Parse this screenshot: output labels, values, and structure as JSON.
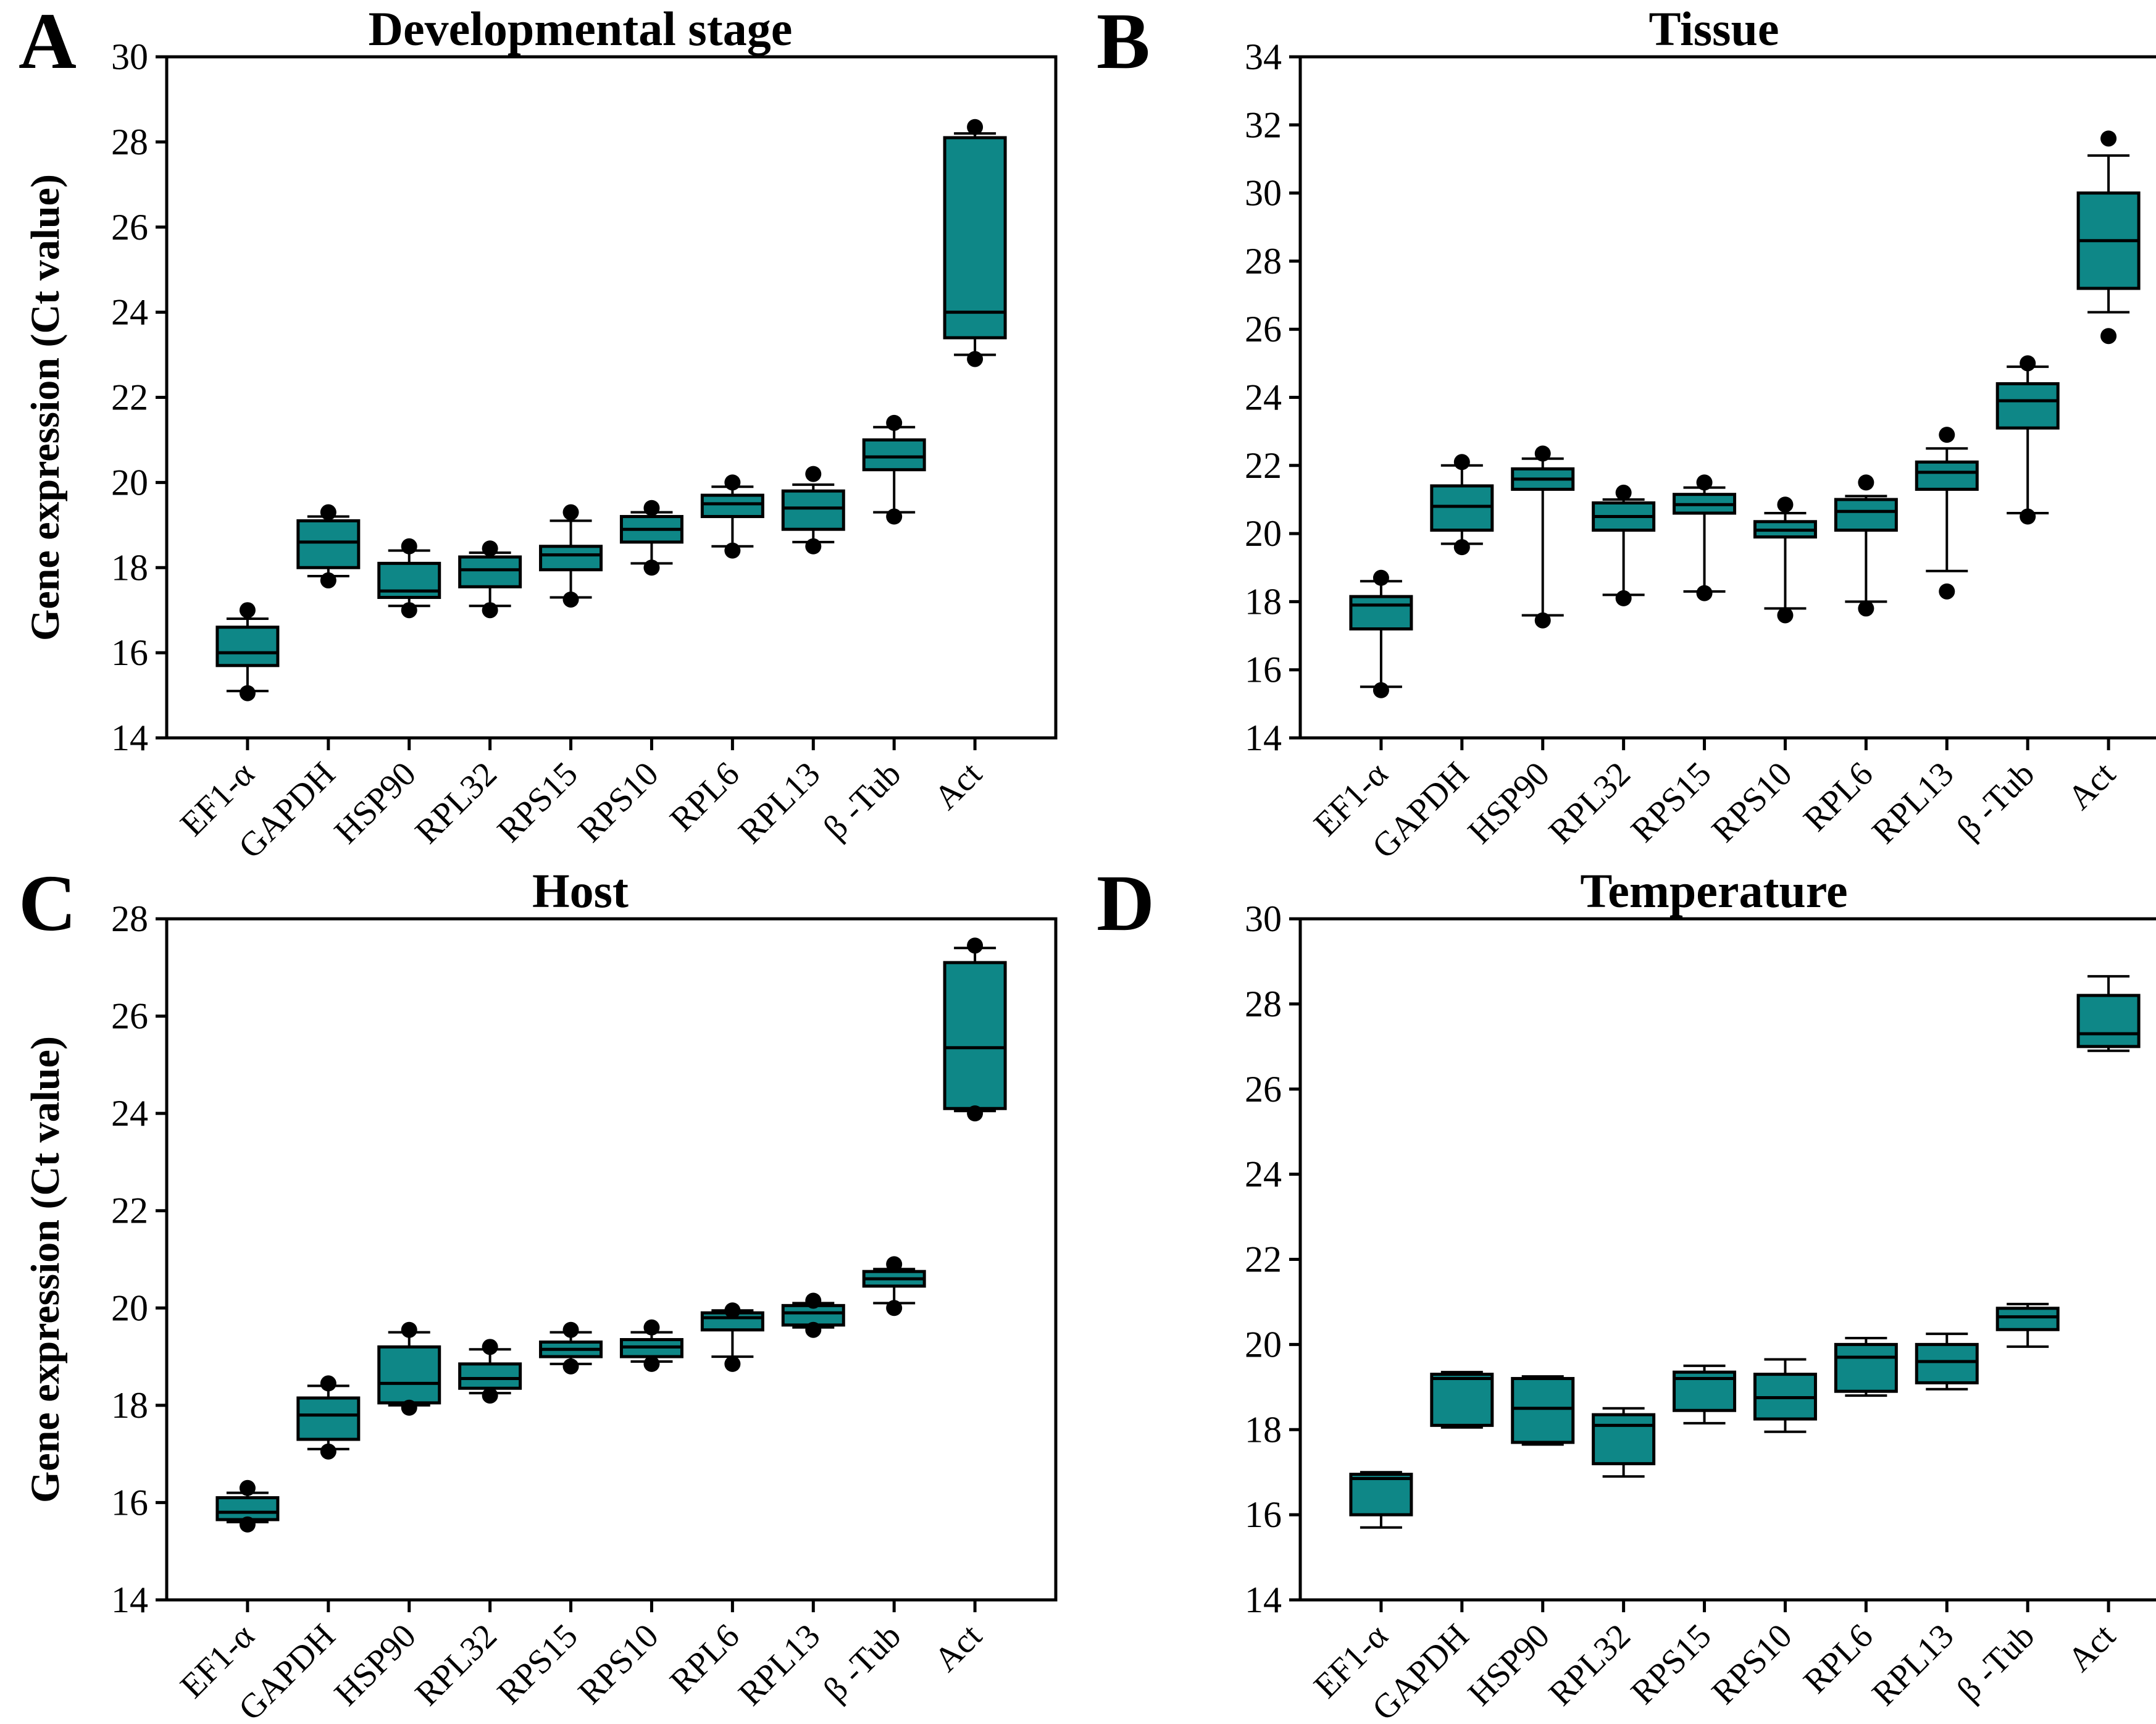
{
  "figure": {
    "ylabel": "Gene expression (Ct value)",
    "box_fill": "#0e8787",
    "line_color": "#000000",
    "background": "#ffffff",
    "genes": [
      "EF1-α",
      "GAPDH",
      "HSP90",
      "RPL32",
      "RPS15",
      "RPS10",
      "RPL6",
      "RPL13",
      "β -Tub",
      "Act"
    ]
  },
  "chart_data": [
    {
      "type": "box",
      "panel_letter": "A",
      "title": "Developmental stage",
      "ylabel": "Gene expression (Ct value)",
      "show_ylabel": true,
      "ylim": [
        14,
        30
      ],
      "ytick_step": 2,
      "grid": false,
      "categories": [
        "EF1-α",
        "GAPDH",
        "HSP90",
        "RPL32",
        "RPS15",
        "RPS10",
        "RPL6",
        "RPL13",
        "β -Tub",
        "Act"
      ],
      "boxes": [
        {
          "gene": "EF1-α",
          "whisker_low": 15.1,
          "q1": 15.7,
          "median": 16.0,
          "q3": 16.6,
          "whisker_high": 16.8,
          "outliers": [
            15.05,
            17.0
          ]
        },
        {
          "gene": "GAPDH",
          "whisker_low": 17.8,
          "q1": 18.0,
          "median": 18.6,
          "q3": 19.1,
          "whisker_high": 19.2,
          "outliers": [
            17.7,
            19.3
          ]
        },
        {
          "gene": "HSP90",
          "whisker_low": 17.1,
          "q1": 17.3,
          "median": 17.45,
          "q3": 18.1,
          "whisker_high": 18.4,
          "outliers": [
            17.0,
            18.5
          ]
        },
        {
          "gene": "RPL32",
          "whisker_low": 17.1,
          "q1": 17.55,
          "median": 17.95,
          "q3": 18.25,
          "whisker_high": 18.35,
          "outliers": [
            17.0,
            18.45
          ]
        },
        {
          "gene": "RPS15",
          "whisker_low": 17.3,
          "q1": 17.95,
          "median": 18.3,
          "q3": 18.5,
          "whisker_high": 19.1,
          "outliers": [
            17.25,
            19.3
          ]
        },
        {
          "gene": "RPS10",
          "whisker_low": 18.1,
          "q1": 18.6,
          "median": 18.9,
          "q3": 19.2,
          "whisker_high": 19.3,
          "outliers": [
            18.0,
            19.4
          ]
        },
        {
          "gene": "RPL6",
          "whisker_low": 18.5,
          "q1": 19.2,
          "median": 19.5,
          "q3": 19.7,
          "whisker_high": 19.9,
          "outliers": [
            18.4,
            20.0
          ]
        },
        {
          "gene": "RPL13",
          "whisker_low": 18.6,
          "q1": 18.9,
          "median": 19.4,
          "q3": 19.8,
          "whisker_high": 19.95,
          "outliers": [
            18.5,
            20.2
          ]
        },
        {
          "gene": "β -Tub",
          "whisker_low": 19.3,
          "q1": 20.3,
          "median": 20.6,
          "q3": 21.0,
          "whisker_high": 21.3,
          "outliers": [
            19.2,
            21.4
          ]
        },
        {
          "gene": "Act",
          "whisker_low": 23.0,
          "q1": 23.4,
          "median": 24.0,
          "q3": 28.1,
          "whisker_high": 28.2,
          "outliers": [
            22.9,
            28.35
          ]
        }
      ]
    },
    {
      "type": "box",
      "panel_letter": "B",
      "title": "Tissue",
      "ylabel": "",
      "show_ylabel": false,
      "ylim": [
        14,
        34
      ],
      "ytick_step": 2,
      "grid": false,
      "categories": [
        "EF1-α",
        "GAPDH",
        "HSP90",
        "RPL32",
        "RPS15",
        "RPS10",
        "RPL6",
        "RPL13",
        "β -Tub",
        "Act"
      ],
      "boxes": [
        {
          "gene": "EF1-α",
          "whisker_low": 15.5,
          "q1": 17.2,
          "median": 17.9,
          "q3": 18.15,
          "whisker_high": 18.6,
          "outliers": [
            15.4,
            18.7
          ]
        },
        {
          "gene": "GAPDH",
          "whisker_low": 19.7,
          "q1": 20.1,
          "median": 20.8,
          "q3": 21.4,
          "whisker_high": 22.0,
          "outliers": [
            19.6,
            22.1
          ]
        },
        {
          "gene": "HSP90",
          "whisker_low": 17.6,
          "q1": 21.3,
          "median": 21.6,
          "q3": 21.9,
          "whisker_high": 22.2,
          "outliers": [
            17.45,
            22.35
          ]
        },
        {
          "gene": "RPL32",
          "whisker_low": 18.2,
          "q1": 20.1,
          "median": 20.5,
          "q3": 20.9,
          "whisker_high": 21.0,
          "outliers": [
            18.1,
            21.2
          ]
        },
        {
          "gene": "RPS15",
          "whisker_low": 18.3,
          "q1": 20.6,
          "median": 20.85,
          "q3": 21.15,
          "whisker_high": 21.35,
          "outliers": [
            18.25,
            21.5
          ]
        },
        {
          "gene": "RPS10",
          "whisker_low": 17.8,
          "q1": 19.9,
          "median": 20.1,
          "q3": 20.35,
          "whisker_high": 20.6,
          "outliers": [
            17.6,
            20.85
          ]
        },
        {
          "gene": "RPL6",
          "whisker_low": 18.0,
          "q1": 20.1,
          "median": 20.65,
          "q3": 21.0,
          "whisker_high": 21.1,
          "outliers": [
            17.8,
            21.5
          ]
        },
        {
          "gene": "RPL13",
          "whisker_low": 18.9,
          "q1": 21.3,
          "median": 21.8,
          "q3": 22.1,
          "whisker_high": 22.5,
          "outliers": [
            18.3,
            22.9
          ]
        },
        {
          "gene": "β -Tub",
          "whisker_low": 20.6,
          "q1": 23.1,
          "median": 23.9,
          "q3": 24.4,
          "whisker_high": 24.9,
          "outliers": [
            20.5,
            25.0
          ]
        },
        {
          "gene": "Act",
          "whisker_low": 26.5,
          "q1": 27.2,
          "median": 28.6,
          "q3": 30.0,
          "whisker_high": 31.1,
          "outliers": [
            25.8,
            31.6
          ]
        }
      ]
    },
    {
      "type": "box",
      "panel_letter": "C",
      "title": "Host",
      "ylabel": "Gene expression (Ct value)",
      "show_ylabel": true,
      "ylim": [
        14,
        28
      ],
      "ytick_step": 2,
      "grid": false,
      "categories": [
        "EF1-α",
        "GAPDH",
        "HSP90",
        "RPL32",
        "RPS15",
        "RPS10",
        "RPL6",
        "RPL13",
        "β -Tub",
        "Act"
      ],
      "boxes": [
        {
          "gene": "EF1-α",
          "whisker_low": 15.6,
          "q1": 15.65,
          "median": 15.8,
          "q3": 16.1,
          "whisker_high": 16.2,
          "outliers": [
            15.55,
            16.3
          ]
        },
        {
          "gene": "GAPDH",
          "whisker_low": 17.1,
          "q1": 17.3,
          "median": 17.8,
          "q3": 18.15,
          "whisker_high": 18.4,
          "outliers": [
            17.05,
            18.45
          ]
        },
        {
          "gene": "HSP90",
          "whisker_low": 18.0,
          "q1": 18.05,
          "median": 18.45,
          "q3": 19.2,
          "whisker_high": 19.5,
          "outliers": [
            17.95,
            19.55
          ]
        },
        {
          "gene": "RPL32",
          "whisker_low": 18.25,
          "q1": 18.35,
          "median": 18.55,
          "q3": 18.85,
          "whisker_high": 19.15,
          "outliers": [
            18.2,
            19.2
          ]
        },
        {
          "gene": "RPS15",
          "whisker_low": 18.85,
          "q1": 19.0,
          "median": 19.15,
          "q3": 19.3,
          "whisker_high": 19.5,
          "outliers": [
            18.8,
            19.55
          ]
        },
        {
          "gene": "RPS10",
          "whisker_low": 18.9,
          "q1": 19.0,
          "median": 19.2,
          "q3": 19.35,
          "whisker_high": 19.5,
          "outliers": [
            18.85,
            19.6
          ]
        },
        {
          "gene": "RPL6",
          "whisker_low": 19.0,
          "q1": 19.55,
          "median": 19.8,
          "q3": 19.9,
          "whisker_high": 19.95,
          "outliers": [
            18.85,
            19.95
          ]
        },
        {
          "gene": "RPL13",
          "whisker_low": 19.6,
          "q1": 19.65,
          "median": 19.9,
          "q3": 20.05,
          "whisker_high": 20.1,
          "outliers": [
            19.55,
            20.15
          ]
        },
        {
          "gene": "β -Tub",
          "whisker_low": 20.1,
          "q1": 20.45,
          "median": 20.6,
          "q3": 20.75,
          "whisker_high": 20.8,
          "outliers": [
            20.0,
            20.9
          ]
        },
        {
          "gene": "Act",
          "whisker_low": 24.05,
          "q1": 24.1,
          "median": 25.35,
          "q3": 27.1,
          "whisker_high": 27.4,
          "outliers": [
            24.0,
            27.45
          ]
        }
      ]
    },
    {
      "type": "box",
      "panel_letter": "D",
      "title": "Temperature",
      "ylabel": "",
      "show_ylabel": false,
      "ylim": [
        14,
        30
      ],
      "ytick_step": 2,
      "grid": false,
      "categories": [
        "EF1-α",
        "GAPDH",
        "HSP90",
        "RPL32",
        "RPS15",
        "RPS10",
        "RPL6",
        "RPL13",
        "β -Tub",
        "Act"
      ],
      "boxes": [
        {
          "gene": "EF1-α",
          "whisker_low": 15.7,
          "q1": 16.0,
          "median": 16.85,
          "q3": 16.95,
          "whisker_high": 17.0,
          "outliers": []
        },
        {
          "gene": "GAPDH",
          "whisker_low": 18.05,
          "q1": 18.1,
          "median": 19.2,
          "q3": 19.3,
          "whisker_high": 19.35,
          "outliers": []
        },
        {
          "gene": "HSP90",
          "whisker_low": 17.65,
          "q1": 17.7,
          "median": 18.5,
          "q3": 19.2,
          "whisker_high": 19.25,
          "outliers": []
        },
        {
          "gene": "RPL32",
          "whisker_low": 16.9,
          "q1": 17.2,
          "median": 18.1,
          "q3": 18.35,
          "whisker_high": 18.5,
          "outliers": []
        },
        {
          "gene": "RPS15",
          "whisker_low": 18.15,
          "q1": 18.45,
          "median": 19.2,
          "q3": 19.35,
          "whisker_high": 19.5,
          "outliers": []
        },
        {
          "gene": "RPS10",
          "whisker_low": 17.95,
          "q1": 18.25,
          "median": 18.75,
          "q3": 19.3,
          "whisker_high": 19.65,
          "outliers": []
        },
        {
          "gene": "RPL6",
          "whisker_low": 18.8,
          "q1": 18.9,
          "median": 19.7,
          "q3": 20.0,
          "whisker_high": 20.15,
          "outliers": []
        },
        {
          "gene": "RPL13",
          "whisker_low": 18.95,
          "q1": 19.1,
          "median": 19.6,
          "q3": 20.0,
          "whisker_high": 20.25,
          "outliers": []
        },
        {
          "gene": "β -Tub",
          "whisker_low": 19.95,
          "q1": 20.35,
          "median": 20.65,
          "q3": 20.85,
          "whisker_high": 20.95,
          "outliers": []
        },
        {
          "gene": "Act",
          "whisker_low": 26.9,
          "q1": 27.0,
          "median": 27.3,
          "q3": 28.2,
          "whisker_high": 28.65,
          "outliers": []
        }
      ]
    }
  ]
}
